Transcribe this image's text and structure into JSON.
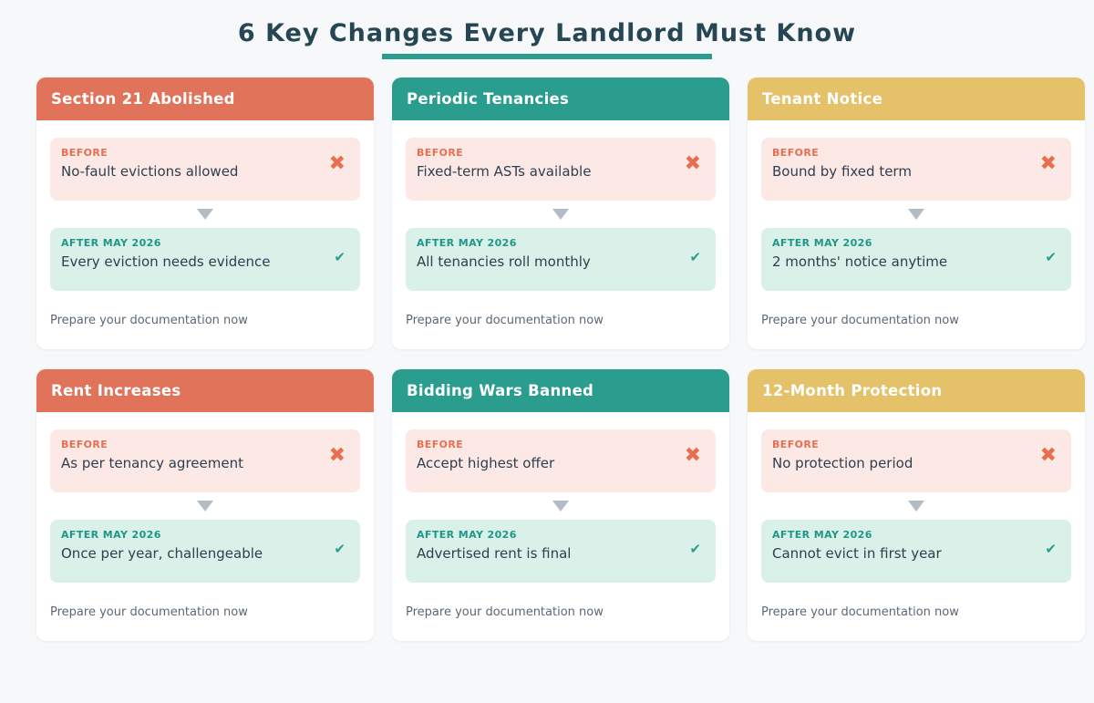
{
  "page": {
    "title": "6 Key Changes Every Landlord Must Know"
  },
  "labels": {
    "before": "BEFORE",
    "after": "AFTER MAY 2026"
  },
  "icons": {
    "cross": "✖",
    "check": "✔"
  },
  "colors": {
    "page_background": "#f7f8fa",
    "title_text": "#264653",
    "title_underline": "#2a9d8f",
    "header_coral": "#e2735b",
    "header_teal": "#2a9d8f",
    "header_gold": "#e5c169",
    "before_background": "#fce9e6",
    "before_accent": "#e76f51",
    "after_background": "#d9f1e8",
    "after_accent": "#1f9688",
    "body_text": "#2d3f50",
    "note_text": "#5b6874",
    "arrow": "#b3bcc4"
  },
  "cards": [
    {
      "title": "Section 21 Abolished",
      "theme": "coral",
      "before": "No-fault evictions allowed",
      "after": "Every eviction needs evidence",
      "note": "Prepare your documentation now"
    },
    {
      "title": "Periodic Tenancies",
      "theme": "teal",
      "before": "Fixed-term ASTs available",
      "after": "All tenancies roll monthly",
      "note": "Prepare your documentation now"
    },
    {
      "title": "Tenant Notice",
      "theme": "gold",
      "before": "Bound by fixed term",
      "after": "2 months' notice anytime",
      "note": "Prepare your documentation now"
    },
    {
      "title": "Rent Increases",
      "theme": "coral",
      "before": "As per tenancy agreement",
      "after": "Once per year, challengeable",
      "note": "Prepare your documentation now"
    },
    {
      "title": "Bidding Wars Banned",
      "theme": "teal",
      "before": "Accept highest offer",
      "after": "Advertised rent is final",
      "note": "Prepare your documentation now"
    },
    {
      "title": "12-Month Protection",
      "theme": "gold",
      "before": "No protection period",
      "after": "Cannot evict in first year",
      "note": "Prepare your documentation now"
    }
  ]
}
